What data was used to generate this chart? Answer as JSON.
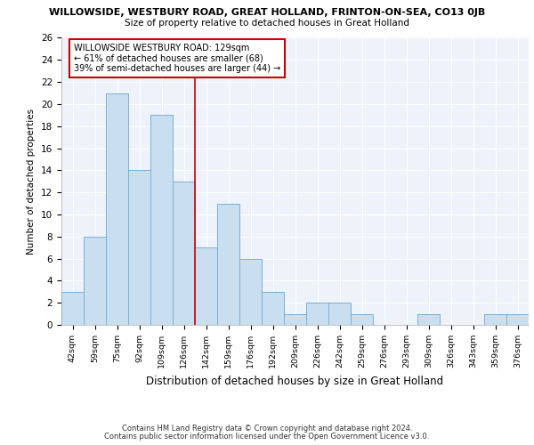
{
  "title_line1": "WILLOWSIDE, WESTBURY ROAD, GREAT HOLLAND, FRINTON-ON-SEA, CO13 0JB",
  "title_line2": "Size of property relative to detached houses in Great Holland",
  "xlabel": "Distribution of detached houses by size in Great Holland",
  "ylabel": "Number of detached properties",
  "bar_labels": [
    "42sqm",
    "59sqm",
    "75sqm",
    "92sqm",
    "109sqm",
    "126sqm",
    "142sqm",
    "159sqm",
    "176sqm",
    "192sqm",
    "209sqm",
    "226sqm",
    "242sqm",
    "259sqm",
    "276sqm",
    "293sqm",
    "309sqm",
    "326sqm",
    "343sqm",
    "359sqm",
    "376sqm"
  ],
  "bar_values": [
    3,
    8,
    21,
    14,
    19,
    13,
    7,
    11,
    6,
    3,
    1,
    2,
    2,
    1,
    0,
    0,
    1,
    0,
    0,
    1,
    1
  ],
  "bar_color": "#c9dff0",
  "bar_edgecolor": "#7bafd4",
  "vline_x": 5.5,
  "vline_color": "#cc0000",
  "annotation_text": "WILLOWSIDE WESTBURY ROAD: 129sqm\n← 61% of detached houses are smaller (68)\n39% of semi-detached houses are larger (44) →",
  "annotation_box_edgecolor": "#cc0000",
  "ylim": [
    0,
    26
  ],
  "yticks": [
    0,
    2,
    4,
    6,
    8,
    10,
    12,
    14,
    16,
    18,
    20,
    22,
    24,
    26
  ],
  "background_color": "#eef2fb",
  "grid_color": "#ffffff",
  "footer_line1": "Contains HM Land Registry data © Crown copyright and database right 2024.",
  "footer_line2": "Contains public sector information licensed under the Open Government Licence v3.0."
}
